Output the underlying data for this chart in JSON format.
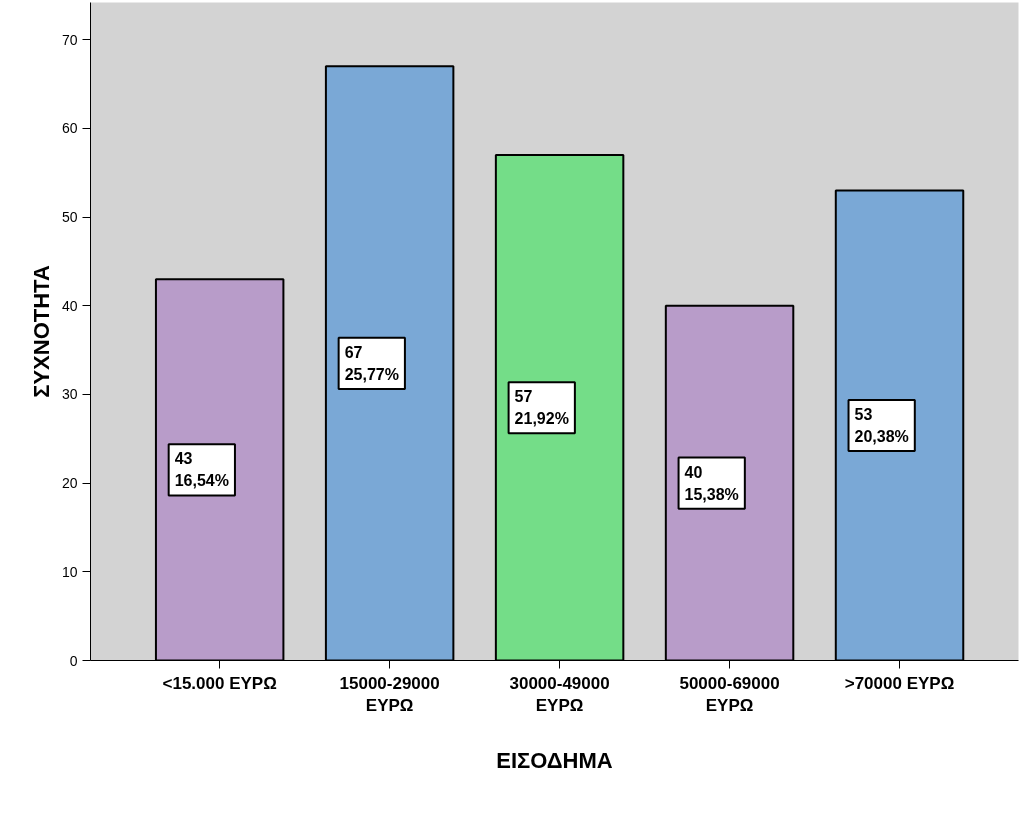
{
  "chart_data": {
    "type": "bar",
    "xlabel": "ΕΙΣΟΔΗΜΑ",
    "ylabel": "ΣΥΧΝΟΤΗΤΑ",
    "categories": [
      "<15.000 ΕΥΡΩ",
      "15000-29000\nΕΥΡΩ",
      "30000-49000\nΕΥΡΩ",
      "50000-69000\nΕΥΡΩ",
      ">70000 ΕΥΡΩ"
    ],
    "values": [
      43,
      67,
      57,
      40,
      53
    ],
    "colors": [
      "#b89cc9",
      "#7aa8d6",
      "#74dd88",
      "#b89cc9",
      "#7aa8d6"
    ],
    "value_labels": [
      "43\n16,54%",
      "67\n25,77%",
      "57\n21,92%",
      "40\n15,38%",
      "53\n20,38%"
    ],
    "ylim": [
      0,
      74.2
    ],
    "yticks": [
      0,
      10,
      20,
      30,
      40,
      50,
      60,
      70
    ],
    "grid": false
  }
}
